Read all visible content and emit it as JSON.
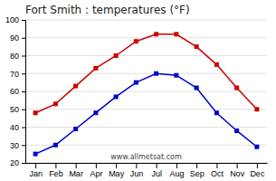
{
  "chart_data": {
    "type": "line",
    "title": "Fort Smith : temperatures (°F)",
    "categories": [
      "Jan",
      "Feb",
      "Mar",
      "Apr",
      "May",
      "Jun",
      "Jul",
      "Aug",
      "Sep",
      "Oct",
      "Nov",
      "Dec"
    ],
    "series": [
      {
        "color": "#cc0000",
        "marker": "square",
        "values": [
          48,
          53,
          63,
          73,
          80,
          88,
          92,
          92,
          85,
          75,
          62,
          50
        ]
      },
      {
        "color": "#0000cc",
        "marker": "square",
        "values": [
          25,
          30,
          39,
          48,
          57,
          65,
          70,
          69,
          62,
          48,
          38,
          29
        ]
      }
    ],
    "ylim": [
      20,
      100
    ],
    "yticks": [
      20,
      30,
      40,
      50,
      60,
      70,
      80,
      90,
      100
    ],
    "grid": true,
    "annotations": [
      "www.allmetsat.com"
    ]
  }
}
